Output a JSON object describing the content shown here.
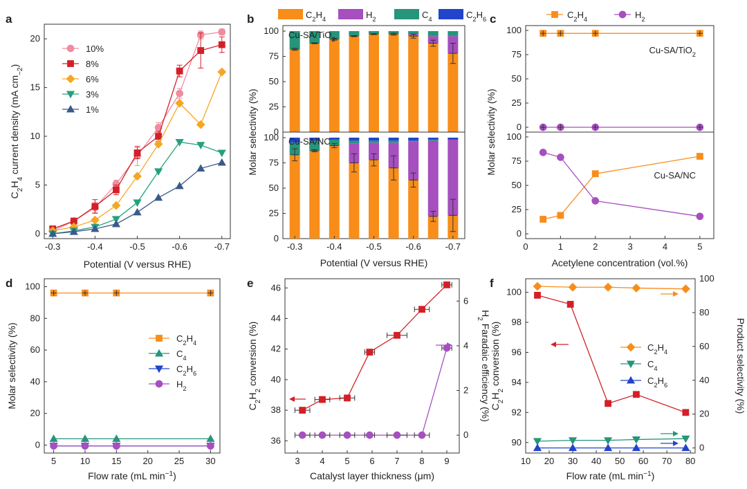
{
  "figure": {
    "panel_letters": [
      "a",
      "b",
      "c",
      "d",
      "e",
      "f"
    ]
  },
  "chart_data": [
    {
      "id": "a",
      "type": "line",
      "xlabel": "Potential (V versus RHE)",
      "ylabel_parts": [
        "C",
        "2",
        "H",
        "4",
        " current density (mA cm",
        "−2",
        ")"
      ],
      "x": [
        -0.3,
        -0.35,
        -0.4,
        -0.45,
        -0.5,
        -0.55,
        -0.6,
        -0.65,
        -0.7
      ],
      "xlim": [
        -0.28,
        -0.72
      ],
      "ylim": [
        -0.5,
        21.5
      ],
      "xticks": [
        -0.3,
        -0.4,
        -0.5,
        -0.6,
        -0.7
      ],
      "xtick_labels": [
        "-0.3",
        "-0.4",
        "-0.5",
        "-0.6",
        "-0.7"
      ],
      "yticks": [
        0,
        5,
        10,
        15,
        20
      ],
      "ytick_labels": [
        "0",
        "5",
        "10",
        "15",
        "20"
      ],
      "series": [
        {
          "name": "10%",
          "color": "#f08ca0",
          "marker": "circle",
          "values": [
            0.3,
            1.3,
            2.7,
            5.1,
            8.0,
            10.9,
            14.4,
            20.4,
            20.7
          ],
          "err": [
            0.3,
            0.3,
            0.5,
            0.4,
            1.0,
            0.5,
            0.5,
            0.4,
            0.3
          ]
        },
        {
          "name": "8%",
          "color": "#d32028",
          "marker": "square",
          "values": [
            0.5,
            1.3,
            2.8,
            4.5,
            8.3,
            10.0,
            16.7,
            18.8,
            19.4
          ],
          "err": [
            0.3,
            0.3,
            0.7,
            0.5,
            0.6,
            0.5,
            0.6,
            1.8,
            0.8
          ]
        },
        {
          "name": "6%",
          "color": "#f5a623",
          "marker": "diamond",
          "values": [
            0.3,
            0.7,
            1.4,
            2.9,
            5.9,
            9.2,
            13.4,
            11.2,
            16.6
          ],
          "err": [
            0,
            0,
            0,
            0,
            0,
            0,
            0,
            0,
            0
          ]
        },
        {
          "name": "3%",
          "color": "#26a07e",
          "marker": "triangle-down",
          "values": [
            0.0,
            0.3,
            0.7,
            1.5,
            3.2,
            6.4,
            9.4,
            9.1,
            8.3
          ],
          "err": [
            0,
            0,
            0,
            0,
            0,
            0,
            0,
            0,
            0
          ]
        },
        {
          "name": "1%",
          "color": "#3b5a8a",
          "marker": "triangle-up",
          "values": [
            0.0,
            0.2,
            0.5,
            1.0,
            2.2,
            3.7,
            4.9,
            6.7,
            7.3
          ],
          "err": [
            0,
            0,
            0,
            0,
            0,
            0,
            0,
            0,
            0
          ]
        }
      ]
    },
    {
      "id": "b",
      "type": "bar",
      "xlabel": "Potential (V versus RHE)",
      "ylabel": "Molar selectivity (%)",
      "legend": [
        {
          "name_parts": [
            "C",
            "2",
            "H",
            "4"
          ],
          "color": "#f88d1a"
        },
        {
          "name_parts": [
            "H",
            "2"
          ],
          "color": "#a64fbf"
        },
        {
          "name_parts": [
            "C",
            "4"
          ],
          "color": "#26957a"
        },
        {
          "name_parts": [
            "C",
            "2",
            "H",
            "6"
          ],
          "color": "#2244cc"
        }
      ],
      "categories": [
        -0.3,
        -0.35,
        -0.4,
        -0.45,
        -0.5,
        -0.55,
        -0.6,
        -0.65,
        -0.7
      ],
      "xticks": [
        -0.3,
        -0.4,
        -0.5,
        -0.6,
        -0.7
      ],
      "xtick_labels": [
        "-0.3",
        "-0.4",
        "-0.5",
        "-0.6",
        "-0.7"
      ],
      "yticks": [
        0,
        25,
        50,
        75,
        100
      ],
      "ytick_labels": [
        "0",
        "25",
        "50",
        "75",
        "100"
      ],
      "subplots": [
        {
          "label_parts": [
            "Cu-SA/TiO",
            "2"
          ],
          "ylim": [
            0,
            100
          ],
          "series": [
            {
              "name": "C2H4",
              "values": [
                82,
                88,
                92,
                95,
                97,
                97,
                95,
                88,
                78
              ],
              "err": [
                1,
                0.5,
                1,
                0.5,
                0.5,
                1,
                2,
                3,
                10
              ]
            },
            {
              "name": "H2",
              "values": [
                0,
                0,
                0,
                0,
                0,
                0,
                2,
                7,
                17
              ],
              "err": []
            },
            {
              "name": "C4",
              "values": [
                18,
                12,
                8,
                5,
                3,
                3,
                3,
                5,
                5
              ],
              "err": []
            },
            {
              "name": "C2H6",
              "values": [
                0,
                0,
                0,
                0,
                0,
                0,
                0,
                0,
                0
              ],
              "err": []
            }
          ]
        },
        {
          "label_parts": [
            "Cu-SA/NC"
          ],
          "ylim": [
            0,
            100
          ],
          "series": [
            {
              "name": "C2H4",
              "values": [
                83,
                87,
                92,
                75,
                78,
                70,
                58,
                22,
                23
              ],
              "err": [
                6,
                1,
                2,
                9,
                6,
                12,
                7,
                5,
                16
              ]
            },
            {
              "name": "H2",
              "values": [
                0,
                0,
                0,
                19,
                17,
                25,
                38,
                75,
                75
              ],
              "err": []
            },
            {
              "name": "C4",
              "values": [
                12,
                10,
                6,
                3,
                2,
                2,
                1,
                1,
                0
              ],
              "err": []
            },
            {
              "name": "C2H6",
              "values": [
                5,
                3,
                2,
                3,
                3,
                3,
                3,
                2,
                2
              ],
              "err": []
            }
          ]
        }
      ]
    },
    {
      "id": "c",
      "type": "line",
      "xlabel": "Acetylene concentration (vol.%)",
      "ylabel": "Molar selectivity (%)",
      "legend": [
        {
          "name_parts": [
            "C",
            "2",
            "H",
            "4"
          ],
          "color": "#f88d1a",
          "marker": "square"
        },
        {
          "name_parts": [
            "H",
            "2"
          ],
          "color": "#a64fbf",
          "marker": "circle"
        }
      ],
      "x": [
        0.5,
        1,
        2,
        5
      ],
      "xlim": [
        0,
        5.4
      ],
      "xticks": [
        0,
        1,
        2,
        3,
        4,
        5
      ],
      "xtick_labels": [
        "0",
        "1",
        "2",
        "3",
        "4",
        "5"
      ],
      "yticks": [
        0,
        25,
        50,
        75,
        100
      ],
      "ytick_labels": [
        "0",
        "25",
        "50",
        "75",
        "100"
      ],
      "subplots": [
        {
          "label_parts": [
            "Cu-SA/TiO",
            "2"
          ],
          "ylim": [
            -5,
            105
          ],
          "series": [
            {
              "name": "C2H4",
              "color": "#f88d1a",
              "marker": "square",
              "values": [
                97,
                97,
                97,
                97
              ]
            },
            {
              "name": "H2",
              "color": "#a64fbf",
              "marker": "circle",
              "values": [
                0,
                0,
                0,
                0
              ]
            }
          ]
        },
        {
          "label_parts": [
            "Cu-SA/NC"
          ],
          "ylim": [
            -5,
            105
          ],
          "series": [
            {
              "name": "C2H4",
              "color": "#f88d1a",
              "marker": "square",
              "values": [
                15,
                19,
                62,
                80
              ]
            },
            {
              "name": "H2",
              "color": "#a64fbf",
              "marker": "circle",
              "values": [
                84,
                79,
                34,
                18
              ]
            }
          ]
        }
      ]
    },
    {
      "id": "d",
      "type": "line",
      "xlabel": "Flow rate (mL min",
      "xlabel_sup": "−1",
      "xlabel_end": ")",
      "ylabel": "Molar selectivity (%)",
      "x": [
        5,
        10,
        15,
        30
      ],
      "xlim": [
        3.5,
        31.5
      ],
      "ylim": [
        -5,
        105
      ],
      "xticks": [
        5,
        10,
        15,
        20,
        25,
        30
      ],
      "xtick_labels": [
        "5",
        "10",
        "15",
        "20",
        "25",
        "30"
      ],
      "yticks": [
        0,
        20,
        40,
        60,
        80,
        100
      ],
      "ytick_labels": [
        "0",
        "20",
        "40",
        "60",
        "80",
        "100"
      ],
      "series": [
        {
          "name_parts": [
            "C",
            "2",
            "H",
            "4"
          ],
          "color": "#f88d1a",
          "marker": "square",
          "values": [
            96,
            96,
            96,
            96
          ]
        },
        {
          "name_parts": [
            "C",
            "4"
          ],
          "color": "#26957a",
          "marker": "triangle-up",
          "values": [
            4,
            4,
            4,
            4
          ]
        },
        {
          "name_parts": [
            "C",
            "2",
            "H",
            "6"
          ],
          "color": "#2244cc",
          "marker": "triangle-down",
          "values": [
            -0.5,
            -0.5,
            -0.5,
            -0.5
          ]
        },
        {
          "name_parts": [
            "H",
            "2"
          ],
          "color": "#a64fbf",
          "marker": "circle",
          "values": [
            -0.5,
            -0.5,
            -0.5,
            -0.5
          ]
        }
      ]
    },
    {
      "id": "e",
      "type": "line",
      "xlabel": "Catalyst layer thickness (μm)",
      "ylabel_left_parts": [
        "C",
        "2",
        "H",
        "2",
        " conversion (%)"
      ],
      "ylabel_right_parts": [
        "H",
        "2",
        " Faradaic efficiency (%)"
      ],
      "x": [
        3.2,
        4.0,
        5.0,
        5.9,
        7.0,
        8.0,
        9.0
      ],
      "xerr": [
        0.3,
        0.3,
        0.3,
        0.2,
        0.4,
        0.3,
        0.2
      ],
      "xlim": [
        2.5,
        9.5
      ],
      "xticks": [
        3,
        4,
        5,
        6,
        7,
        8,
        9
      ],
      "xtick_labels": [
        "3",
        "4",
        "5",
        "6",
        "7",
        "8",
        "9"
      ],
      "ylim_left": [
        35.2,
        46.6
      ],
      "yticks_left": [
        36,
        38,
        40,
        42,
        44,
        46
      ],
      "ytick_labels_left": [
        "36",
        "38",
        "40",
        "42",
        "44",
        "46"
      ],
      "ylim_right": [
        -0.8,
        7
      ],
      "yticks_right": [
        0,
        2,
        4,
        6
      ],
      "ytick_labels_right": [
        "0",
        "2",
        "4",
        "6"
      ],
      "series": [
        {
          "name": "C2H2 conversion",
          "axis": "left",
          "color": "#d32028",
          "marker": "square",
          "values": [
            38.0,
            38.7,
            38.8,
            41.8,
            42.9,
            44.6,
            46.2
          ]
        },
        {
          "name": "H2 Faradaic efficiency",
          "axis": "right",
          "color": "#a64fbf",
          "marker": "circle",
          "values": [
            0,
            0,
            0,
            0,
            0,
            0,
            3.9
          ]
        }
      ]
    },
    {
      "id": "f",
      "type": "line",
      "xlabel": "Flow rate (mL min",
      "xlabel_sup": "−1",
      "xlabel_end": ")",
      "ylabel_left_parts": [
        "C",
        "2",
        "H",
        "2",
        " conversion (%)"
      ],
      "ylabel_right": "Product selectivity (%)",
      "xlim": [
        10,
        82
      ],
      "xticks": [
        10,
        20,
        30,
        40,
        50,
        60,
        70,
        80
      ],
      "xtick_labels": [
        "10",
        "20",
        "30",
        "40",
        "50",
        "60",
        "70",
        "80"
      ],
      "ylim_left": [
        89.3,
        100.9
      ],
      "yticks_left": [
        90,
        92,
        94,
        96,
        98,
        100
      ],
      "ytick_labels_left": [
        "90",
        "92",
        "94",
        "96",
        "98",
        "100"
      ],
      "ylim_right": [
        -3,
        100
      ],
      "yticks_right": [
        0,
        20,
        40,
        60,
        80,
        100
      ],
      "ytick_labels_right": [
        "0",
        "20",
        "40",
        "60",
        "80",
        "100"
      ],
      "series": [
        {
          "name": "C2H2 conversion",
          "axis": "left",
          "color": "#d32028",
          "marker": "square",
          "x": [
            15,
            29,
            45,
            57,
            78
          ],
          "values": [
            99.8,
            99.2,
            92.6,
            93.2,
            92.0
          ]
        },
        {
          "name_parts": [
            "C",
            "2",
            "H",
            "4"
          ],
          "axis": "right",
          "color": "#f88d1a",
          "marker": "diamond",
          "x": [
            15,
            30,
            45,
            57,
            78
          ],
          "values": [
            95.5,
            95,
            95,
            94.5,
            94
          ]
        },
        {
          "name_parts": [
            "C",
            "4"
          ],
          "axis": "right",
          "color": "#26957a",
          "marker": "triangle-down",
          "x": [
            15,
            30,
            45,
            57,
            78
          ],
          "values": [
            4,
            4.5,
            4.5,
            5,
            5.5
          ]
        },
        {
          "name_parts": [
            "C",
            "2",
            "H",
            "6"
          ],
          "axis": "right",
          "color": "#2244cc",
          "marker": "triangle-up",
          "x": [
            15,
            30,
            45,
            57,
            78
          ],
          "values": [
            0,
            0,
            0,
            0,
            0
          ]
        }
      ]
    }
  ]
}
